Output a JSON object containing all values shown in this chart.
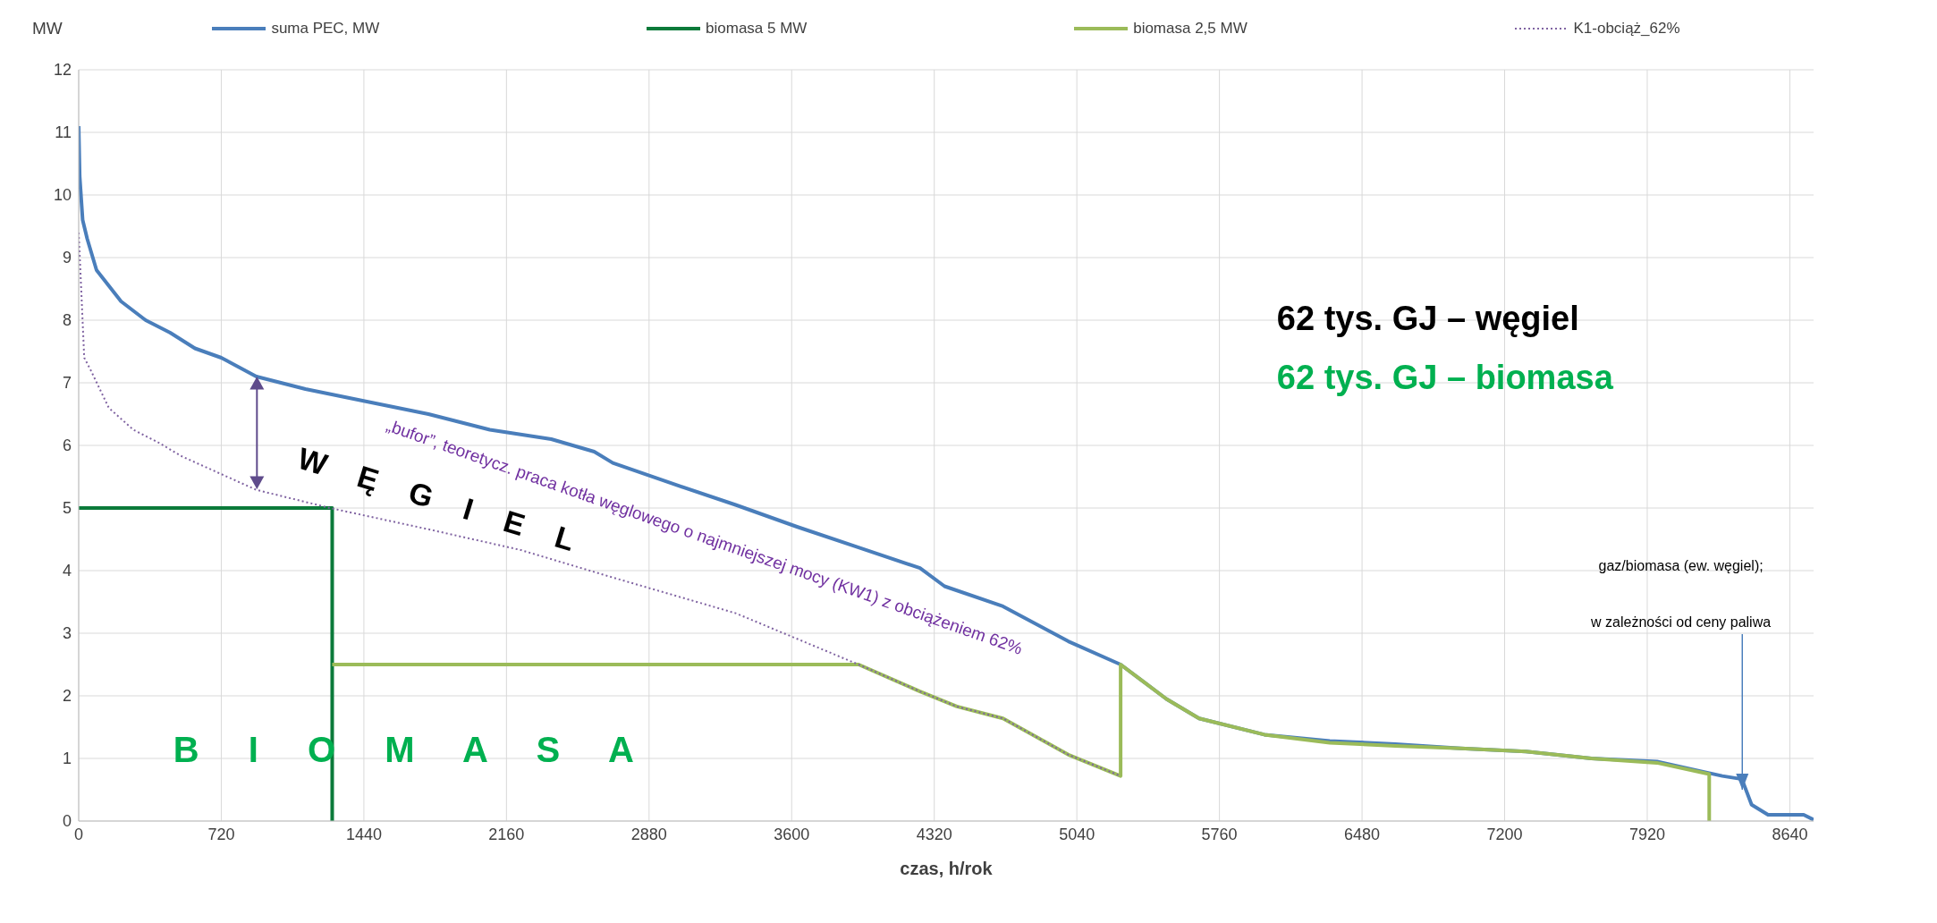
{
  "chart_data": {
    "type": "line",
    "xlabel": "czas, h/rok",
    "ylabel": "MW",
    "xlim": [
      0,
      8760
    ],
    "xticks": [
      0,
      720,
      1440,
      2160,
      2880,
      3600,
      4320,
      5040,
      5760,
      6480,
      7200,
      7920,
      8640
    ],
    "ylim": [
      0,
      12
    ],
    "yticks": [
      0,
      1,
      2,
      3,
      4,
      5,
      6,
      7,
      8,
      9,
      10,
      11,
      12
    ],
    "grid": true,
    "legend": "top",
    "marker": "none",
    "series": [
      {
        "name": "suma PEC, MW",
        "color": "#4a7ebb",
        "line_style": "solid",
        "x": [
          0,
          5,
          20,
          43,
          90,
          214,
          338,
          462,
          587,
          720,
          897,
          1145,
          1455,
          1766,
          2076,
          2386,
          2603,
          2697,
          3007,
          3317,
          3627,
          3938,
          4248,
          4372,
          4667,
          4997,
          5261,
          5492,
          5657,
          5987,
          6317,
          6648,
          6978,
          7308,
          7638,
          7969,
          8299,
          8398,
          8447,
          8530,
          8710,
          8760
        ],
        "values": [
          11.1,
          10.3,
          9.6,
          9.3,
          8.8,
          8.3,
          8.0,
          7.8,
          7.55,
          7.4,
          7.1,
          6.9,
          6.7,
          6.5,
          6.25,
          6.1,
          5.9,
          5.72,
          5.38,
          5.05,
          4.7,
          4.37,
          4.04,
          3.75,
          3.43,
          2.87,
          2.5,
          1.95,
          1.64,
          1.38,
          1.28,
          1.23,
          1.16,
          1.11,
          1.0,
          0.95,
          0.72,
          0.67,
          0.26,
          0.1,
          0.1,
          0.02
        ]
      },
      {
        "name": "biomasa 5 MW",
        "color": "#0b7a3a",
        "line_style": "solid",
        "x": [
          0,
          1280,
          1280
        ],
        "values": [
          5,
          5,
          0
        ]
      },
      {
        "name": "biomasa 2,5 MW",
        "color": "#9bbb59",
        "line_style": "solid",
        "x": [
          1280,
          3938,
          4248,
          4434,
          4667,
          4997,
          5261,
          5261,
          5492,
          5657,
          5987,
          6317,
          6648,
          6978,
          7308,
          7638,
          7969,
          8233,
          8233
        ],
        "values": [
          2.5,
          2.5,
          2.07,
          1.83,
          1.64,
          1.06,
          0.72,
          2.5,
          1.95,
          1.64,
          1.38,
          1.25,
          1.2,
          1.16,
          1.11,
          1.0,
          0.93,
          0.75,
          0
        ]
      },
      {
        "name": "K1-obciąż_62%",
        "color": "#8064a2",
        "line_style": "dotted",
        "x": [
          0,
          28,
          61,
          152,
          276,
          400,
          524,
          897,
          1269,
          1766,
          2231,
          2697,
          3317,
          3938,
          4248,
          4434,
          4667,
          4997,
          5261
        ],
        "values": [
          9.4,
          7.4,
          7.2,
          6.6,
          6.25,
          6.05,
          5.82,
          5.29,
          5.0,
          4.66,
          4.33,
          3.89,
          3.32,
          2.5,
          2.07,
          1.83,
          1.64,
          1.06,
          0.72
        ]
      }
    ],
    "annotations": [
      "62 tys. GJ – węgiel",
      "62 tys. GJ – biomasa",
      "„bufor”, teoretycz. praca kotła węglowego o najmniejszej mocy (KW1) z obciążeniem 62%",
      "W Ę G I E L",
      "B I O M A S A",
      "gaz/biomasa (ew. węgiel);",
      {
        "text": "w zależności od ceny paliwa",
        "x": 8400,
        "y": 0.5
      }
    ]
  }
}
